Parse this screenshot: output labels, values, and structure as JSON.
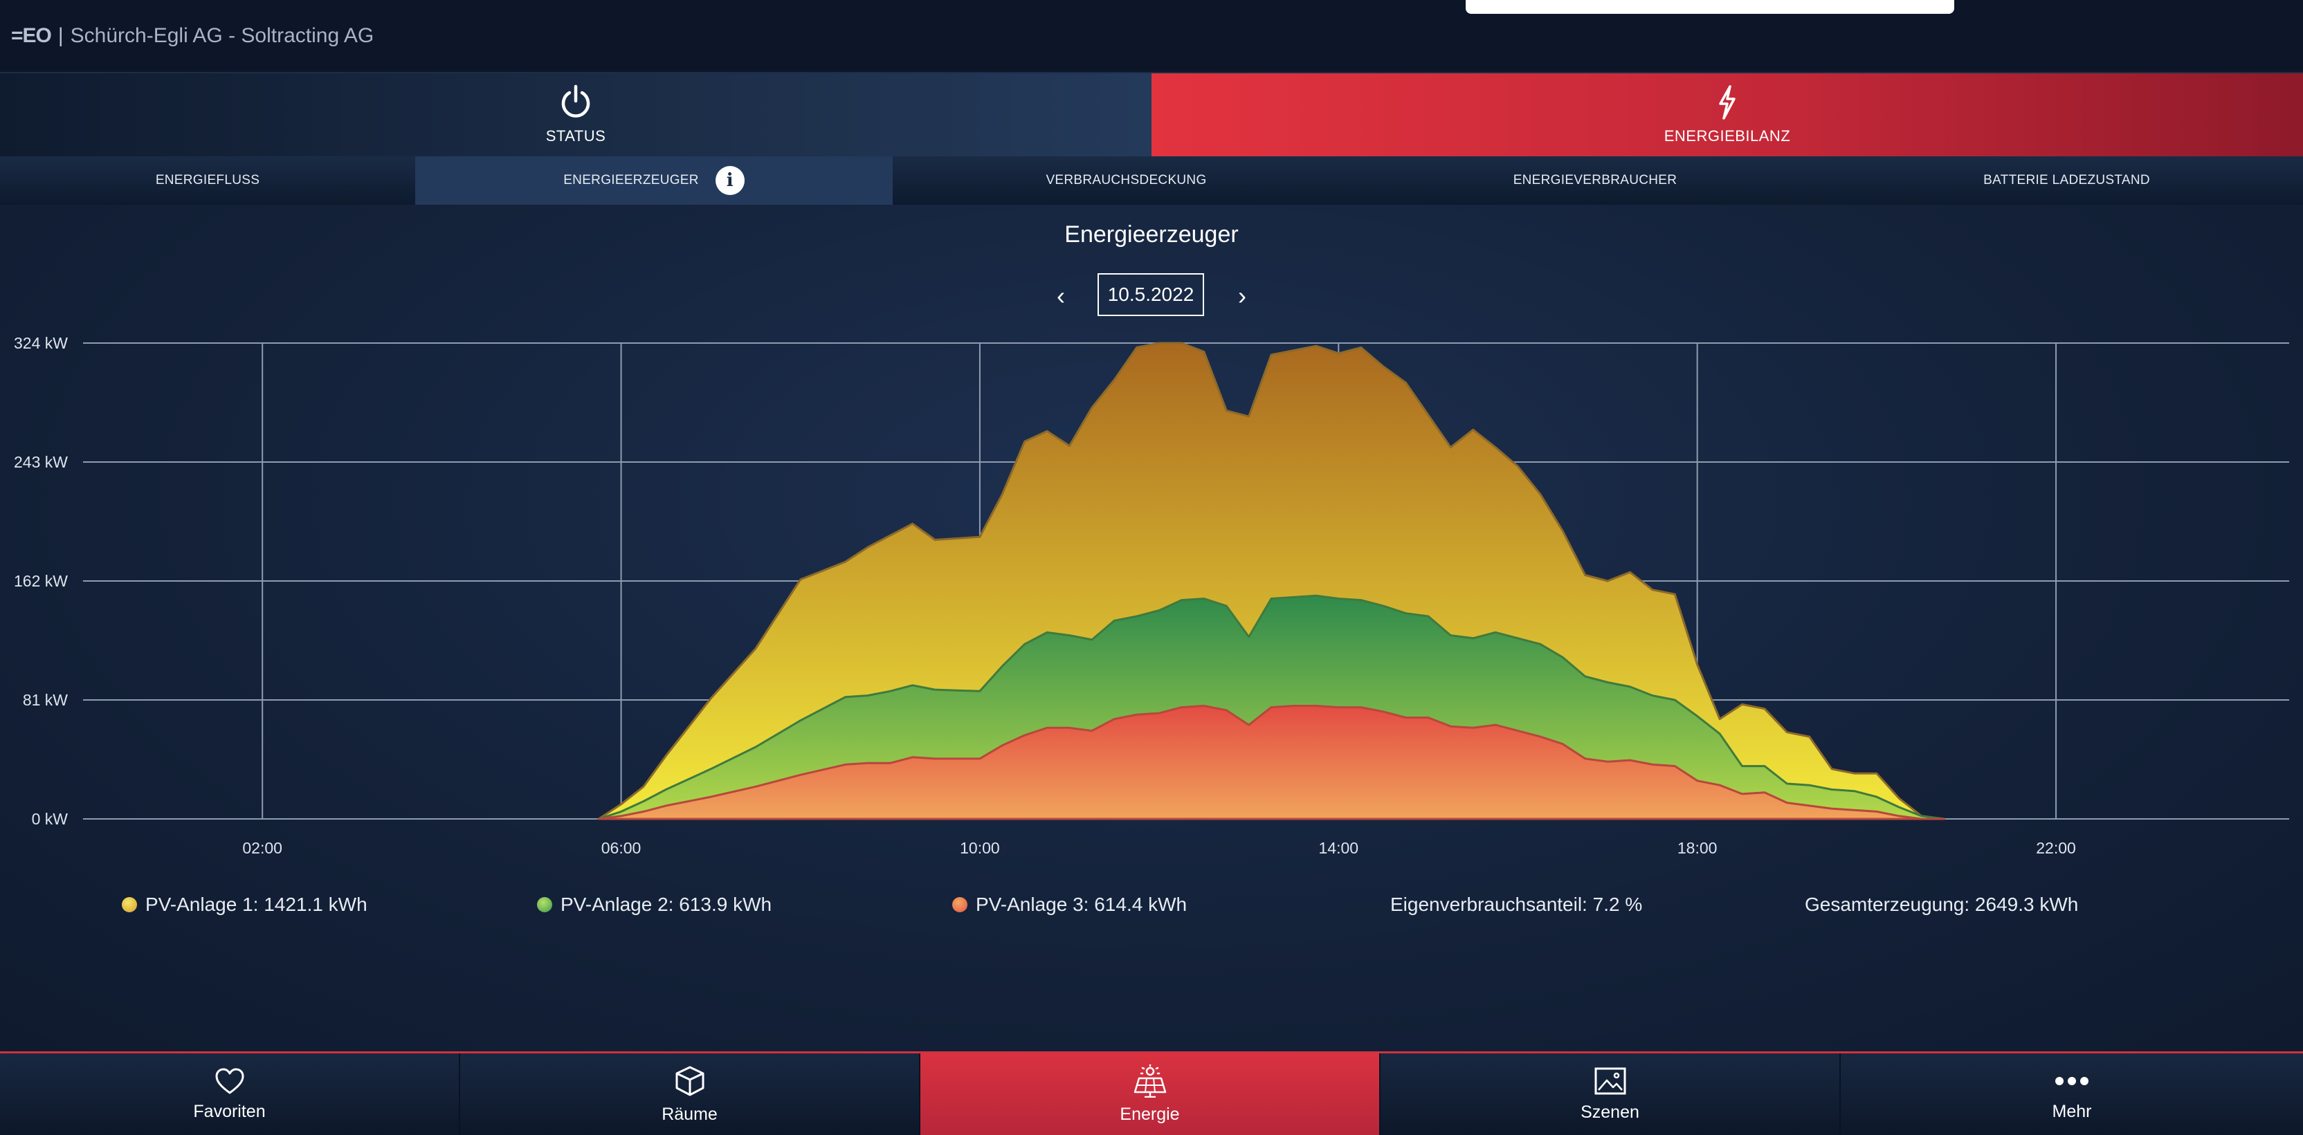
{
  "header": {
    "logo_mark": "=EO",
    "separator": "|",
    "title": "Schürch-Egli AG - Soltracting AG"
  },
  "main_tabs": [
    {
      "label": "STATUS",
      "icon": "power-icon",
      "active": false
    },
    {
      "label": "ENERGIEBILANZ",
      "icon": "lightning-icon",
      "active": true
    }
  ],
  "sub_tabs": [
    {
      "label": "ENERGIEFLUSS",
      "active": false
    },
    {
      "label": "ENERGIEERZEUGER",
      "active": true,
      "info_icon": "info-icon",
      "info_glyph": "i"
    },
    {
      "label": "VERBRAUCHSDECKUNG",
      "active": false
    },
    {
      "label": "ENERGIEVERBRAUCHER",
      "active": false
    },
    {
      "label": "BATTERIE LADEZUSTAND",
      "active": false
    }
  ],
  "chart_header": {
    "title": "Energieerzeuger",
    "date": "10.5.2022",
    "prev_icon": "chevron-left-icon",
    "prev_glyph": "‹",
    "next_icon": "chevron-right-icon",
    "next_glyph": "›"
  },
  "chart_data": {
    "type": "area",
    "stacked": true,
    "title": "",
    "xlabel": "",
    "ylabel": "",
    "x_unit": "hour of day",
    "xlim": [
      0,
      24.6
    ],
    "ylim": [
      0,
      324
    ],
    "x_ticks": [
      {
        "value": 2,
        "label": "02:00"
      },
      {
        "value": 6,
        "label": "06:00"
      },
      {
        "value": 10,
        "label": "10:00"
      },
      {
        "value": 14,
        "label": "14:00"
      },
      {
        "value": 18,
        "label": "18:00"
      },
      {
        "value": 22,
        "label": "22:00"
      }
    ],
    "y_ticks": [
      {
        "value": 0,
        "label": "0 kW"
      },
      {
        "value": 81,
        "label": "81 kW"
      },
      {
        "value": 162,
        "label": "162 kW"
      },
      {
        "value": 243,
        "label": "243 kW"
      },
      {
        "value": 324,
        "label": "324 kW"
      }
    ],
    "grid": true,
    "x": [
      5.75,
      6.0,
      6.25,
      6.5,
      7.0,
      7.5,
      8.0,
      8.5,
      8.75,
      9.0,
      9.25,
      9.5,
      10.0,
      10.25,
      10.5,
      10.75,
      11.0,
      11.25,
      11.5,
      11.75,
      12.0,
      12.25,
      12.5,
      12.75,
      13.0,
      13.25,
      13.5,
      13.75,
      14.0,
      14.25,
      14.5,
      14.75,
      15.0,
      15.25,
      15.5,
      15.75,
      16.0,
      16.25,
      16.5,
      16.75,
      17.0,
      17.25,
      17.5,
      17.75,
      18.0,
      18.25,
      18.5,
      18.75,
      19.0,
      19.25,
      19.5,
      19.75,
      20.0,
      20.25,
      20.5,
      20.75
    ],
    "series": [
      {
        "name": "PV-Anlage 3",
        "color": "#e8634a",
        "values": [
          0,
          2,
          5,
          9,
          15,
          22,
          30,
          37,
          38,
          38,
          42,
          41,
          41,
          50,
          57,
          62,
          62,
          60,
          68,
          71,
          72,
          76,
          77,
          74,
          64,
          76,
          77,
          77,
          76,
          76,
          73,
          69,
          69,
          63,
          62,
          64,
          60,
          56,
          51,
          41,
          39,
          40,
          37,
          36,
          26,
          23,
          17,
          18,
          11,
          9,
          7,
          6,
          5,
          2,
          0,
          0
        ]
      },
      {
        "name": "PV-Anlage 2",
        "color": "#6ab850",
        "values": [
          0,
          3,
          7,
          11,
          19,
          27,
          37,
          46,
          46,
          49,
          49,
          47,
          46,
          54,
          62,
          65,
          63,
          62,
          67,
          67,
          70,
          73,
          73,
          71,
          60,
          74,
          74,
          75,
          74,
          73,
          72,
          71,
          69,
          62,
          61,
          63,
          63,
          63,
          59,
          56,
          54,
          50,
          47,
          45,
          44,
          35,
          19,
          18,
          13,
          14,
          13,
          13,
          10,
          6,
          2,
          0
        ]
      },
      {
        "name": "PV-Anlage 1",
        "color": "#e8c93a",
        "values": [
          0,
          5,
          10,
          23,
          48,
          67,
          96,
          92,
          101,
          106,
          110,
          102,
          105,
          117,
          138,
          137,
          129,
          158,
          164,
          183,
          182,
          175,
          168,
          133,
          150,
          166,
          168,
          170,
          167,
          172,
          163,
          157,
          137,
          128,
          142,
          126,
          117,
          102,
          86,
          69,
          69,
          78,
          72,
          72,
          35,
          10,
          42,
          39,
          35,
          33,
          14,
          12,
          16,
          6,
          0,
          0
        ]
      }
    ]
  },
  "legend": [
    {
      "label": "PV-Anlage 1: 1421.1 kWh",
      "color": "#e8c93a"
    },
    {
      "label": "PV-Anlage 2: 613.9 kWh",
      "color": "#6ab850"
    },
    {
      "label": "PV-Anlage 3: 614.4 kWh",
      "color": "#e8634a"
    },
    {
      "label": "Eigenverbrauchsanteil: 7.2 %"
    },
    {
      "label": "Gesamterzeugung: 2649.3 kWh"
    }
  ],
  "bottom_nav": [
    {
      "label": "Favoriten",
      "icon": "heart-icon",
      "active": false
    },
    {
      "label": "Räume",
      "icon": "cube-icon",
      "active": false
    },
    {
      "label": "Energie",
      "icon": "solar-panel-icon",
      "active": true
    },
    {
      "label": "Szenen",
      "icon": "image-icon",
      "active": false
    },
    {
      "label": "Mehr",
      "icon": "more-dots-icon",
      "active": false
    }
  ]
}
